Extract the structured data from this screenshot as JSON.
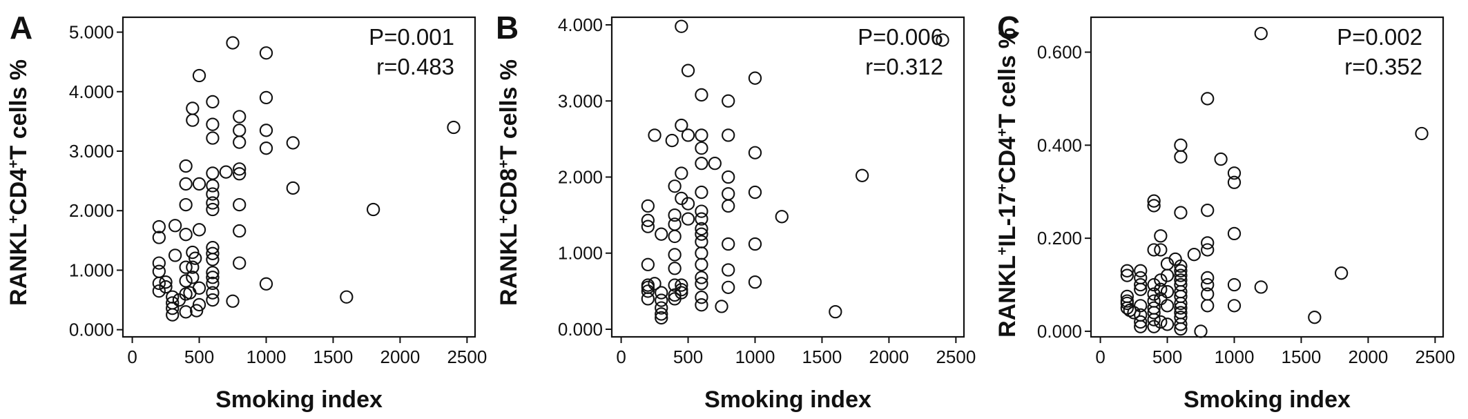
{
  "chart_data": [
    {
      "type": "scatter",
      "panel_label": "A",
      "xlabel": "Smoking index",
      "ylabel_parts": [
        {
          "text": "RANKL",
          "sup": false
        },
        {
          "text": "+",
          "sup": true
        },
        {
          "text": "CD4",
          "sup": false
        },
        {
          "text": "+",
          "sup": true
        },
        {
          "text": "T cells %",
          "sup": false
        }
      ],
      "xlim": [
        -70,
        2560
      ],
      "ylim": [
        -0.12,
        5.25
      ],
      "xticks": [
        0,
        500,
        1000,
        1500,
        2000,
        2500
      ],
      "xtick_labels": [
        "0",
        "500",
        "1000",
        "1500",
        "2000",
        "2500"
      ],
      "yticks": [
        0,
        1,
        2,
        3,
        4,
        5
      ],
      "ytick_labels": [
        "0.000",
        "1.000",
        "2.000",
        "3.000",
        "4.000",
        "5.000"
      ],
      "grid": false,
      "annotations": [
        "P=0.001",
        "r=0.483"
      ],
      "points": [
        [
          200,
          1.73
        ],
        [
          200,
          1.55
        ],
        [
          200,
          1.12
        ],
        [
          200,
          0.98
        ],
        [
          200,
          0.78
        ],
        [
          200,
          0.65
        ],
        [
          250,
          0.8
        ],
        [
          250,
          0.72
        ],
        [
          300,
          0.55
        ],
        [
          300,
          0.45
        ],
        [
          300,
          0.36
        ],
        [
          300,
          0.25
        ],
        [
          320,
          1.75
        ],
        [
          320,
          1.25
        ],
        [
          350,
          0.5
        ],
        [
          400,
          2.75
        ],
        [
          400,
          2.45
        ],
        [
          400,
          2.1
        ],
        [
          400,
          1.6
        ],
        [
          400,
          1.05
        ],
        [
          400,
          0.82
        ],
        [
          400,
          0.6
        ],
        [
          400,
          0.3
        ],
        [
          430,
          0.62
        ],
        [
          450,
          3.72
        ],
        [
          450,
          3.52
        ],
        [
          450,
          1.3
        ],
        [
          450,
          1.05
        ],
        [
          450,
          0.88
        ],
        [
          470,
          1.2
        ],
        [
          480,
          0.32
        ],
        [
          500,
          4.27
        ],
        [
          500,
          2.45
        ],
        [
          500,
          1.68
        ],
        [
          500,
          0.7
        ],
        [
          500,
          0.42
        ],
        [
          600,
          3.83
        ],
        [
          600,
          3.45
        ],
        [
          600,
          3.22
        ],
        [
          600,
          2.63
        ],
        [
          600,
          2.42
        ],
        [
          600,
          2.28
        ],
        [
          600,
          2.13
        ],
        [
          600,
          2.02
        ],
        [
          600,
          1.38
        ],
        [
          600,
          1.28
        ],
        [
          600,
          1.18
        ],
        [
          600,
          0.96
        ],
        [
          600,
          0.88
        ],
        [
          600,
          0.78
        ],
        [
          600,
          0.62
        ],
        [
          600,
          0.5
        ],
        [
          700,
          2.65
        ],
        [
          750,
          4.82
        ],
        [
          750,
          0.48
        ],
        [
          800,
          3.58
        ],
        [
          800,
          3.35
        ],
        [
          800,
          3.15
        ],
        [
          800,
          2.7
        ],
        [
          800,
          2.62
        ],
        [
          800,
          2.1
        ],
        [
          800,
          1.66
        ],
        [
          800,
          1.12
        ],
        [
          1000,
          4.65
        ],
        [
          1000,
          3.9
        ],
        [
          1000,
          3.35
        ],
        [
          1000,
          3.05
        ],
        [
          1000,
          0.77
        ],
        [
          1200,
          3.14
        ],
        [
          1200,
          2.38
        ],
        [
          1600,
          0.55
        ],
        [
          1800,
          2.02
        ],
        [
          2400,
          3.4
        ]
      ]
    },
    {
      "type": "scatter",
      "panel_label": "B",
      "xlabel": "Smoking index",
      "ylabel_parts": [
        {
          "text": "RANKL",
          "sup": false
        },
        {
          "text": "+",
          "sup": true
        },
        {
          "text": "CD8",
          "sup": false
        },
        {
          "text": "+",
          "sup": true
        },
        {
          "text": "T cells %",
          "sup": false
        }
      ],
      "xlim": [
        -70,
        2560
      ],
      "ylim": [
        -0.1,
        4.1
      ],
      "xticks": [
        0,
        500,
        1000,
        1500,
        2000,
        2500
      ],
      "xtick_labels": [
        "0",
        "500",
        "1000",
        "1500",
        "2000",
        "2500"
      ],
      "yticks": [
        0,
        1,
        2,
        3,
        4
      ],
      "ytick_labels": [
        "0.000",
        "1.000",
        "2.000",
        "3.000",
        "4.000"
      ],
      "grid": false,
      "annotations": [
        "P=0.006",
        "r=0.312"
      ],
      "points": [
        [
          200,
          1.62
        ],
        [
          200,
          1.43
        ],
        [
          200,
          1.35
        ],
        [
          200,
          0.85
        ],
        [
          200,
          0.58
        ],
        [
          200,
          0.55
        ],
        [
          200,
          0.5
        ],
        [
          200,
          0.4
        ],
        [
          250,
          2.55
        ],
        [
          250,
          0.6
        ],
        [
          300,
          1.25
        ],
        [
          300,
          0.48
        ],
        [
          300,
          0.38
        ],
        [
          300,
          0.28
        ],
        [
          300,
          0.2
        ],
        [
          300,
          0.15
        ],
        [
          380,
          2.48
        ],
        [
          400,
          1.88
        ],
        [
          400,
          1.5
        ],
        [
          400,
          1.38
        ],
        [
          400,
          1.22
        ],
        [
          400,
          0.98
        ],
        [
          400,
          0.8
        ],
        [
          400,
          0.58
        ],
        [
          400,
          0.45
        ],
        [
          400,
          0.4
        ],
        [
          450,
          3.98
        ],
        [
          450,
          2.68
        ],
        [
          450,
          2.05
        ],
        [
          450,
          1.72
        ],
        [
          450,
          0.58
        ],
        [
          450,
          0.52
        ],
        [
          450,
          0.48
        ],
        [
          500,
          3.4
        ],
        [
          500,
          2.55
        ],
        [
          500,
          1.65
        ],
        [
          500,
          1.45
        ],
        [
          600,
          3.08
        ],
        [
          600,
          2.55
        ],
        [
          600,
          2.38
        ],
        [
          600,
          2.18
        ],
        [
          600,
          1.8
        ],
        [
          600,
          1.55
        ],
        [
          600,
          1.45
        ],
        [
          600,
          1.32
        ],
        [
          600,
          1.25
        ],
        [
          600,
          1.15
        ],
        [
          600,
          1.0
        ],
        [
          600,
          0.85
        ],
        [
          600,
          0.68
        ],
        [
          600,
          0.6
        ],
        [
          600,
          0.42
        ],
        [
          600,
          0.32
        ],
        [
          700,
          2.18
        ],
        [
          750,
          0.3
        ],
        [
          800,
          3.0
        ],
        [
          800,
          2.55
        ],
        [
          800,
          2.0
        ],
        [
          800,
          1.78
        ],
        [
          800,
          1.62
        ],
        [
          800,
          1.12
        ],
        [
          800,
          0.78
        ],
        [
          800,
          0.55
        ],
        [
          1000,
          3.3
        ],
        [
          1000,
          2.32
        ],
        [
          1000,
          1.8
        ],
        [
          1000,
          1.12
        ],
        [
          1000,
          0.62
        ],
        [
          1200,
          1.48
        ],
        [
          1600,
          0.23
        ],
        [
          1800,
          2.02
        ],
        [
          2400,
          3.8
        ]
      ]
    },
    {
      "type": "scatter",
      "panel_label": "C",
      "xlabel": "Smoking index",
      "ylabel_parts": [
        {
          "text": "RANKL",
          "sup": false
        },
        {
          "text": "+",
          "sup": true
        },
        {
          "text": "IL-17",
          "sup": false
        },
        {
          "text": "+",
          "sup": true
        },
        {
          "text": "CD4",
          "sup": false
        },
        {
          "text": "+",
          "sup": true
        },
        {
          "text": "T cells %",
          "sup": false
        }
      ],
      "xlim": [
        -70,
        2560
      ],
      "ylim": [
        -0.012,
        0.675
      ],
      "xticks": [
        0,
        500,
        1000,
        1500,
        2000,
        2500
      ],
      "xtick_labels": [
        "0",
        "500",
        "1000",
        "1500",
        "2000",
        "2500"
      ],
      "yticks": [
        0,
        0.2,
        0.4,
        0.6
      ],
      "ytick_labels": [
        "0.000",
        "0.200",
        "0.400",
        "0.600"
      ],
      "grid": false,
      "annotations": [
        "P=0.002",
        "r=0.352"
      ],
      "points": [
        [
          200,
          0.13
        ],
        [
          200,
          0.12
        ],
        [
          200,
          0.075
        ],
        [
          200,
          0.065
        ],
        [
          200,
          0.06
        ],
        [
          200,
          0.05
        ],
        [
          220,
          0.045
        ],
        [
          250,
          0.04
        ],
        [
          300,
          0.13
        ],
        [
          300,
          0.115
        ],
        [
          300,
          0.1
        ],
        [
          300,
          0.09
        ],
        [
          300,
          0.055
        ],
        [
          300,
          0.035
        ],
        [
          300,
          0.02
        ],
        [
          300,
          0.01
        ],
        [
          400,
          0.28
        ],
        [
          400,
          0.27
        ],
        [
          400,
          0.175
        ],
        [
          400,
          0.1
        ],
        [
          400,
          0.08
        ],
        [
          400,
          0.065
        ],
        [
          400,
          0.05
        ],
        [
          400,
          0.04
        ],
        [
          400,
          0.025
        ],
        [
          400,
          0.01
        ],
        [
          450,
          0.205
        ],
        [
          450,
          0.175
        ],
        [
          450,
          0.11
        ],
        [
          450,
          0.09
        ],
        [
          450,
          0.07
        ],
        [
          450,
          0.02
        ],
        [
          500,
          0.145
        ],
        [
          500,
          0.12
        ],
        [
          500,
          0.085
        ],
        [
          500,
          0.055
        ],
        [
          500,
          0.015
        ],
        [
          560,
          0.155
        ],
        [
          600,
          0.4
        ],
        [
          600,
          0.375
        ],
        [
          600,
          0.255
        ],
        [
          600,
          0.14
        ],
        [
          600,
          0.13
        ],
        [
          600,
          0.12
        ],
        [
          600,
          0.11
        ],
        [
          600,
          0.1
        ],
        [
          600,
          0.085
        ],
        [
          600,
          0.075
        ],
        [
          600,
          0.06
        ],
        [
          600,
          0.05
        ],
        [
          600,
          0.04
        ],
        [
          600,
          0.03
        ],
        [
          600,
          0.015
        ],
        [
          600,
          0.005
        ],
        [
          700,
          0.165
        ],
        [
          750,
          0.0
        ],
        [
          800,
          0.5
        ],
        [
          800,
          0.26
        ],
        [
          800,
          0.19
        ],
        [
          800,
          0.175
        ],
        [
          800,
          0.115
        ],
        [
          800,
          0.1
        ],
        [
          800,
          0.08
        ],
        [
          800,
          0.055
        ],
        [
          900,
          0.37
        ],
        [
          1000,
          0.34
        ],
        [
          1000,
          0.32
        ],
        [
          1000,
          0.21
        ],
        [
          1000,
          0.1
        ],
        [
          1000,
          0.055
        ],
        [
          1200,
          0.64
        ],
        [
          1200,
          0.095
        ],
        [
          1600,
          0.03
        ],
        [
          1800,
          0.125
        ],
        [
          2400,
          0.425
        ]
      ]
    }
  ]
}
